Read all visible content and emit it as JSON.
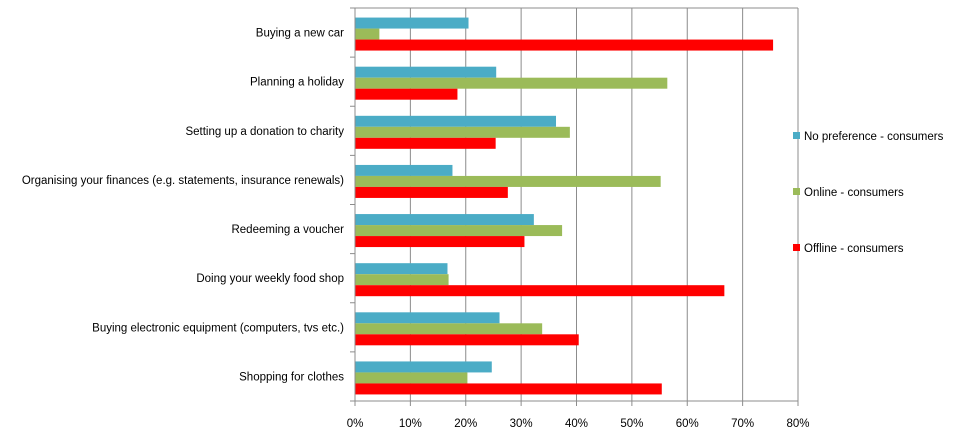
{
  "chart_data": {
    "type": "bar",
    "orientation": "horizontal",
    "categories": [
      "Buying a new car",
      "Planning a holiday",
      "Setting up a donation to charity",
      "Organising your finances (e.g. statements, insurance renewals)",
      "Redeeming a voucher",
      "Doing your weekly food shop",
      "Buying electronic equipment (computers, tvs etc.)",
      "Shopping for clothes"
    ],
    "series": [
      {
        "name": "No preference - consumers",
        "color": "#4BACC6",
        "values": [
          20.5,
          25.5,
          36.3,
          17.6,
          32.3,
          16.7,
          26.1,
          24.7
        ]
      },
      {
        "name": "Online - consumers",
        "color": "#9BBB59",
        "values": [
          4.4,
          56.4,
          38.8,
          55.2,
          37.4,
          16.9,
          33.8,
          20.3
        ]
      },
      {
        "name": "Offline - consumers",
        "color": "#FF0000",
        "values": [
          75.5,
          18.5,
          25.4,
          27.6,
          30.6,
          66.7,
          40.4,
          55.4
        ]
      }
    ],
    "xlim": [
      0,
      80
    ],
    "xticks": [
      0,
      10,
      20,
      30,
      40,
      50,
      60,
      70,
      80
    ],
    "tick_format": "{v}%",
    "grid": true,
    "legend_position": "right"
  }
}
